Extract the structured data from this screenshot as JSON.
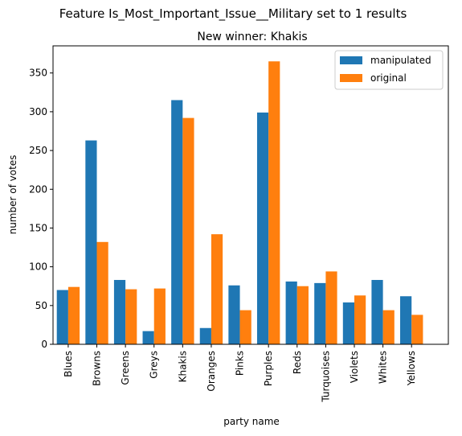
{
  "chart_data": {
    "type": "bar",
    "title": "Feature Is_Most_Important_Issue__Military set to 1 results",
    "subtitle": "New winner: Khakis",
    "xlabel": "party name",
    "ylabel": "number of votes",
    "ylim": [
      0,
      385
    ],
    "yticks": [
      0,
      50,
      100,
      150,
      200,
      250,
      300,
      350
    ],
    "grid": false,
    "legend_position": "top-right",
    "categories": [
      "Blues",
      "Browns",
      "Greens",
      "Greys",
      "Khakis",
      "Oranges",
      "Pinks",
      "Purples",
      "Reds",
      "Turquoises",
      "Violets",
      "Whites",
      "Yellows"
    ],
    "series": [
      {
        "name": "manipulated",
        "color": "#1f77b4",
        "values": [
          70,
          263,
          83,
          17,
          315,
          21,
          76,
          299,
          81,
          79,
          54,
          83,
          62
        ]
      },
      {
        "name": "original",
        "color": "#ff7f0e",
        "values": [
          74,
          132,
          71,
          72,
          292,
          142,
          44,
          365,
          75,
          94,
          63,
          44,
          38
        ]
      }
    ]
  }
}
